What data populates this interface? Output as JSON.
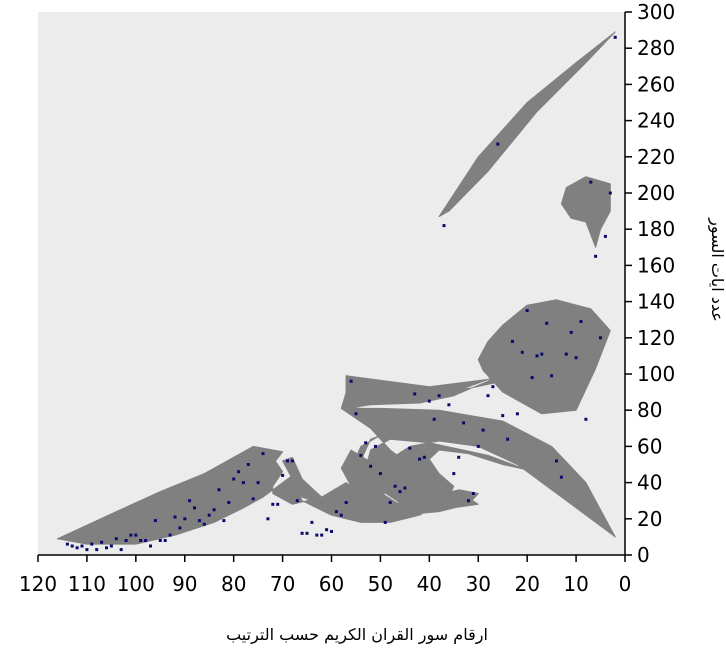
{
  "chart_data": {
    "type": "scatter",
    "title": "",
    "xlabel": "ارقام سور القران الكريم حسب  الترتيب",
    "ylabel": "عدد ايات السور",
    "xlim": [
      120,
      0
    ],
    "ylim": [
      0,
      300
    ],
    "x_reversed": true,
    "y_axis_side": "right",
    "x_ticks": [
      120,
      110,
      100,
      90,
      80,
      70,
      60,
      50,
      40,
      30,
      20,
      10,
      0
    ],
    "y_ticks": [
      0,
      20,
      40,
      60,
      80,
      100,
      120,
      140,
      160,
      180,
      200,
      220,
      240,
      260,
      280,
      300
    ],
    "plot_background": "#ececec",
    "shape_color": "#808080",
    "marker_color": "#0a0a6e",
    "series": [
      {
        "points": [
          [
            2,
            286
          ],
          [
            3,
            200
          ],
          [
            4,
            176
          ],
          [
            5,
            120
          ],
          [
            6,
            165
          ],
          [
            7,
            206
          ],
          [
            8,
            75
          ],
          [
            9,
            129
          ],
          [
            10,
            109
          ],
          [
            11,
            123
          ],
          [
            12,
            111
          ],
          [
            13,
            43
          ],
          [
            14,
            52
          ],
          [
            15,
            99
          ],
          [
            16,
            128
          ],
          [
            17,
            111
          ],
          [
            18,
            110
          ],
          [
            19,
            98
          ],
          [
            20,
            135
          ],
          [
            21,
            112
          ],
          [
            22,
            78
          ],
          [
            23,
            118
          ],
          [
            24,
            64
          ],
          [
            25,
            77
          ],
          [
            26,
            227
          ],
          [
            27,
            93
          ],
          [
            28,
            88
          ],
          [
            29,
            69
          ],
          [
            30,
            60
          ],
          [
            31,
            34
          ],
          [
            32,
            30
          ],
          [
            33,
            73
          ],
          [
            34,
            54
          ],
          [
            35,
            45
          ],
          [
            36,
            83
          ],
          [
            37,
            182
          ],
          [
            38,
            88
          ],
          [
            39,
            75
          ],
          [
            40,
            85
          ],
          [
            41,
            54
          ],
          [
            42,
            53
          ],
          [
            43,
            89
          ],
          [
            44,
            59
          ],
          [
            45,
            37
          ],
          [
            46,
            35
          ],
          [
            47,
            38
          ],
          [
            48,
            29
          ],
          [
            49,
            18
          ],
          [
            50,
            45
          ],
          [
            51,
            60
          ],
          [
            52,
            49
          ],
          [
            53,
            62
          ],
          [
            54,
            55
          ],
          [
            55,
            78
          ],
          [
            56,
            96
          ],
          [
            57,
            29
          ],
          [
            58,
            22
          ],
          [
            59,
            24
          ],
          [
            60,
            13
          ],
          [
            61,
            14
          ],
          [
            62,
            11
          ],
          [
            63,
            11
          ],
          [
            64,
            18
          ],
          [
            65,
            12
          ],
          [
            66,
            12
          ],
          [
            67,
            30
          ],
          [
            68,
            52
          ],
          [
            69,
            52
          ],
          [
            70,
            44
          ],
          [
            71,
            28
          ],
          [
            72,
            28
          ],
          [
            73,
            20
          ],
          [
            74,
            56
          ],
          [
            75,
            40
          ],
          [
            76,
            31
          ],
          [
            77,
            50
          ],
          [
            78,
            40
          ],
          [
            79,
            46
          ],
          [
            80,
            42
          ],
          [
            81,
            29
          ],
          [
            82,
            19
          ],
          [
            83,
            36
          ],
          [
            84,
            25
          ],
          [
            85,
            22
          ],
          [
            86,
            17
          ],
          [
            87,
            19
          ],
          [
            88,
            26
          ],
          [
            89,
            30
          ],
          [
            90,
            20
          ],
          [
            91,
            15
          ],
          [
            92,
            21
          ],
          [
            93,
            11
          ],
          [
            94,
            8
          ],
          [
            95,
            8
          ],
          [
            96,
            19
          ],
          [
            97,
            5
          ],
          [
            98,
            8
          ],
          [
            99,
            8
          ],
          [
            100,
            11
          ],
          [
            101,
            11
          ],
          [
            102,
            8
          ],
          [
            103,
            3
          ],
          [
            104,
            9
          ],
          [
            105,
            5
          ],
          [
            106,
            4
          ],
          [
            107,
            7
          ],
          [
            108,
            3
          ],
          [
            109,
            6
          ],
          [
            110,
            3
          ],
          [
            111,
            5
          ],
          [
            112,
            4
          ],
          [
            113,
            5
          ],
          [
            114,
            6
          ]
        ]
      }
    ]
  }
}
